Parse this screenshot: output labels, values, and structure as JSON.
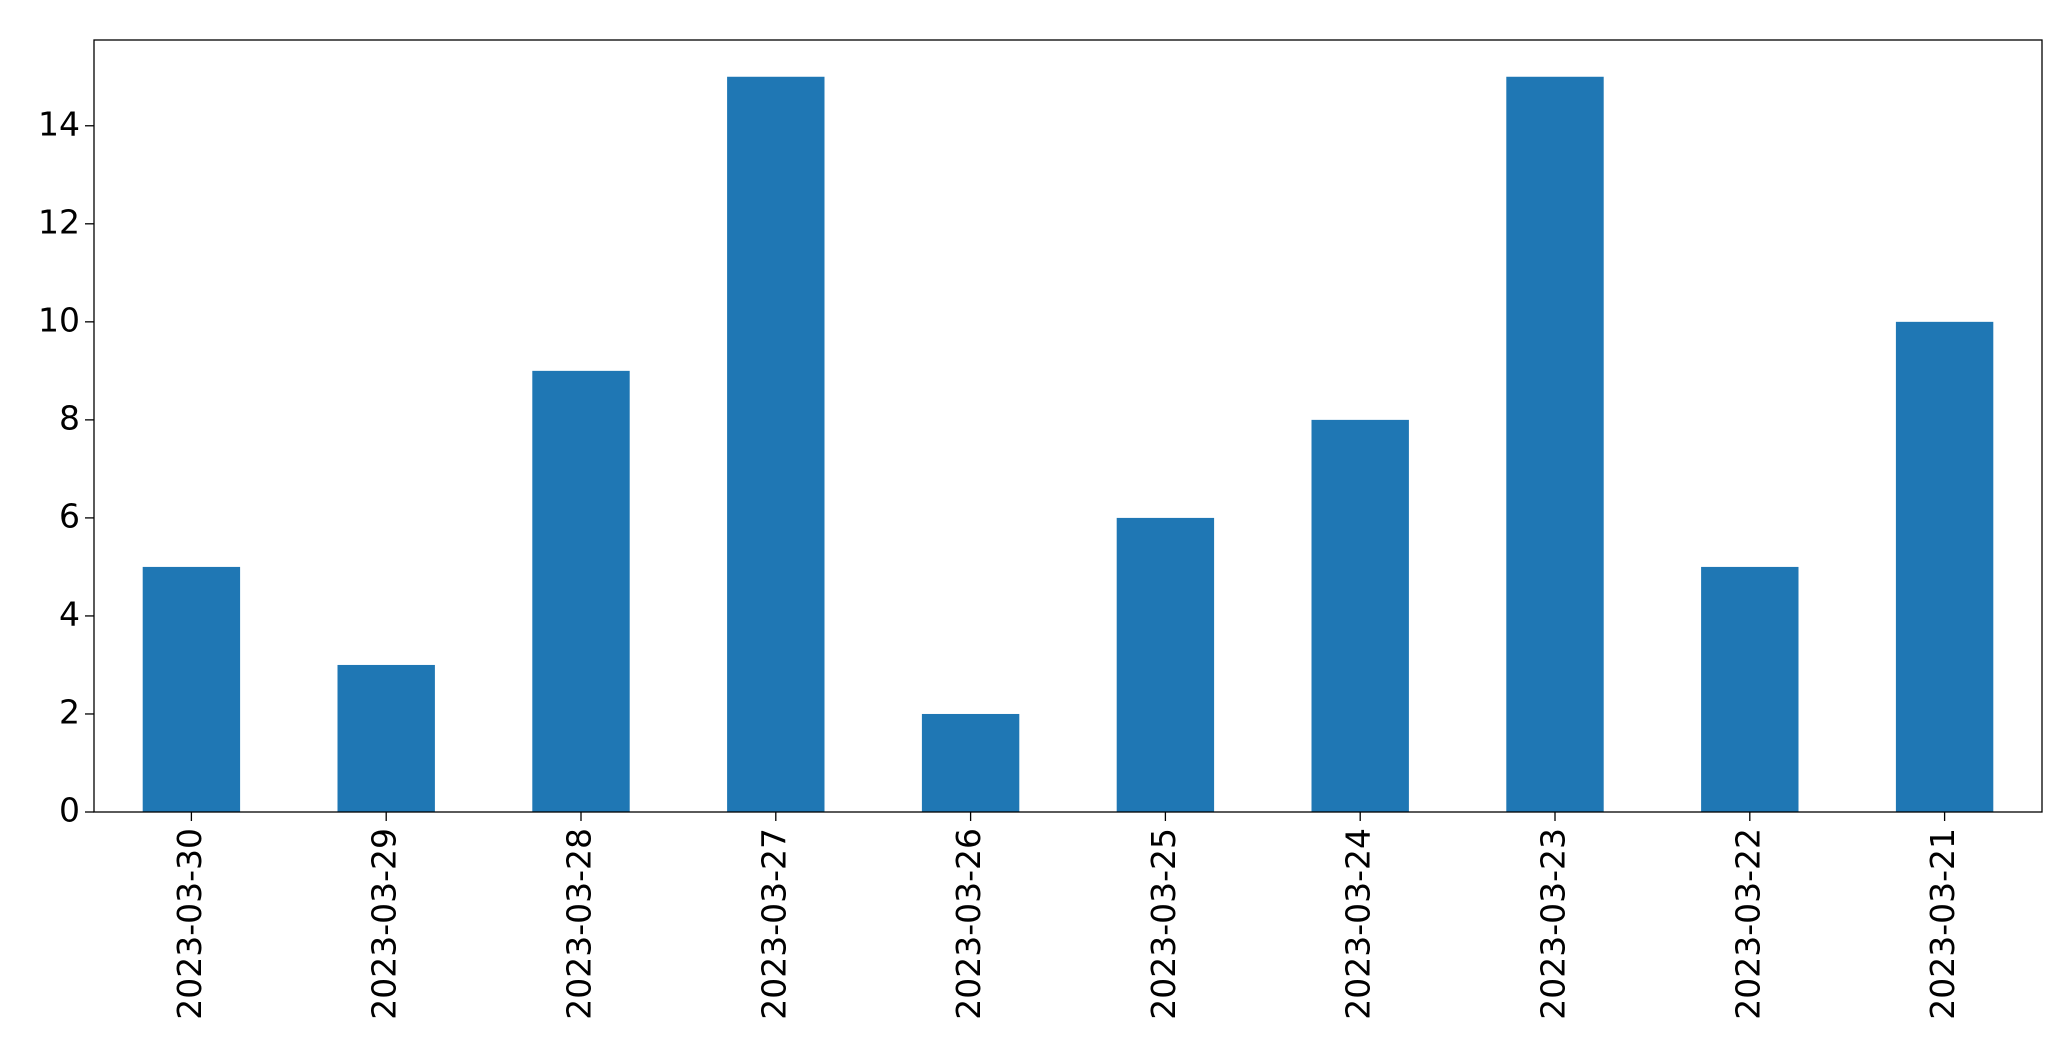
{
  "chart_data": {
    "type": "bar",
    "categories": [
      "2023-03-30",
      "2023-03-29",
      "2023-03-28",
      "2023-03-27",
      "2023-03-26",
      "2023-03-25",
      "2023-03-24",
      "2023-03-23",
      "2023-03-22",
      "2023-03-21"
    ],
    "values": [
      5,
      3,
      9,
      15,
      2,
      6,
      8,
      15,
      5,
      10
    ],
    "color": "#1f77b4",
    "ylim": [
      0,
      15.75
    ],
    "yticks": [
      0,
      2,
      4,
      6,
      8,
      10,
      12,
      14
    ],
    "grid": false
  }
}
